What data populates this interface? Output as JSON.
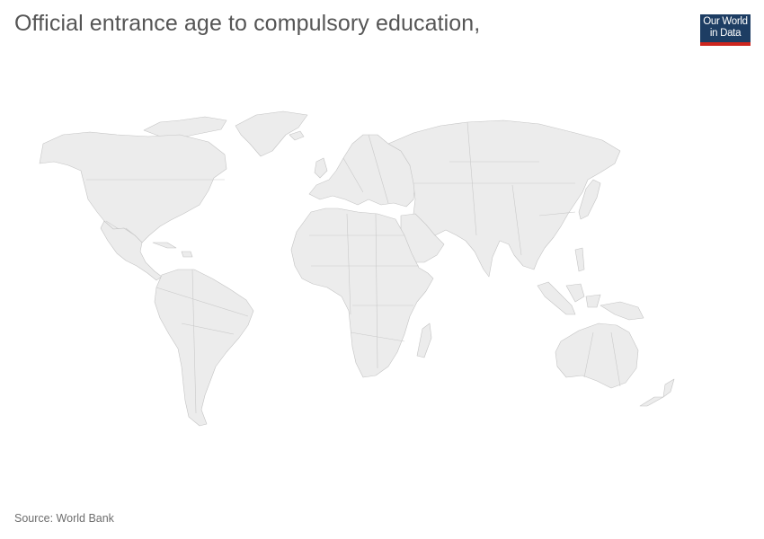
{
  "title": "Official entrance age to compulsory education,",
  "logo": {
    "line1": "Our World",
    "line2": "in Data"
  },
  "source": "Source: World Bank",
  "colors": {
    "land": "#ececec",
    "border": "#c4c4c4",
    "title": "#555555",
    "logo_bg": "#1d3d63",
    "logo_accent": "#ce261e"
  }
}
